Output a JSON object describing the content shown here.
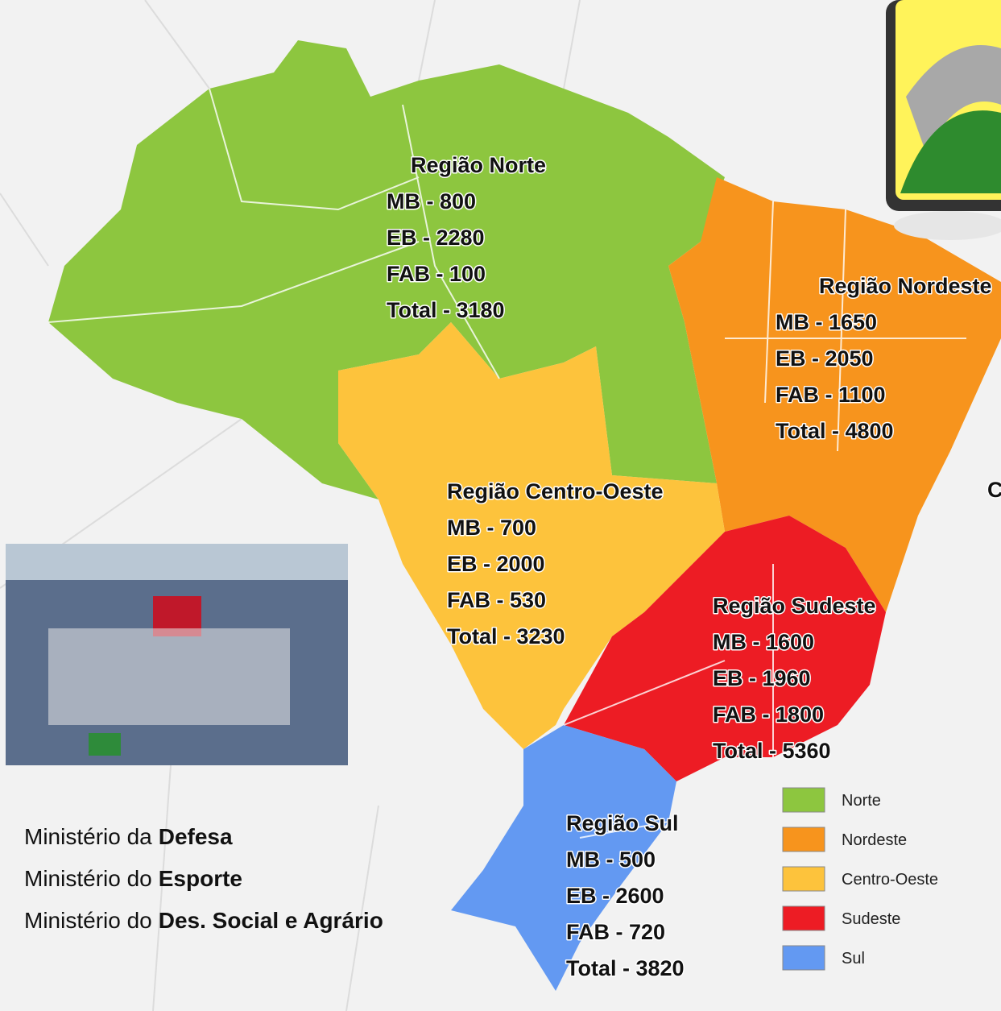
{
  "regions": [
    {
      "title": "Região Norte",
      "lines": [
        "MB - 800",
        "EB - 2280",
        "FAB - 100",
        "Total - 3180"
      ]
    },
    {
      "title": "Região Nordeste",
      "lines": [
        "MB - 1650",
        "EB - 2050",
        "FAB - 1100",
        "Total - 4800"
      ]
    },
    {
      "title": "Região Centro-Oeste",
      "lines": [
        "MB - 700",
        "EB - 2000",
        "FAB - 530",
        "Total - 3230"
      ]
    },
    {
      "title": "Região Sudeste",
      "lines": [
        "MB - 1600",
        "EB - 1960",
        "FAB - 1800",
        "Total  - 5360"
      ]
    },
    {
      "title": "Região Sul",
      "lines": [
        "MB - 500",
        "EB - 2600",
        "FAB - 720",
        "Total - 3820"
      ]
    }
  ],
  "legend": [
    {
      "label": "Norte",
      "color": "#8dc63f"
    },
    {
      "label": "Nordeste",
      "color": "#f7941d"
    },
    {
      "label": "Centro-Oeste",
      "color": "#fdc33c"
    },
    {
      "label": "Sudeste",
      "color": "#ed1c24"
    },
    {
      "label": "Sul",
      "color": "#6399f2"
    }
  ],
  "ministries": [
    {
      "prefix": "Ministério da",
      "name": "Defesa"
    },
    {
      "prefix": "Ministério do",
      "name": "Esporte"
    },
    {
      "prefix": "Ministério do",
      "name": "Des. Social e Agrário"
    }
  ],
  "edge_text": "C"
}
